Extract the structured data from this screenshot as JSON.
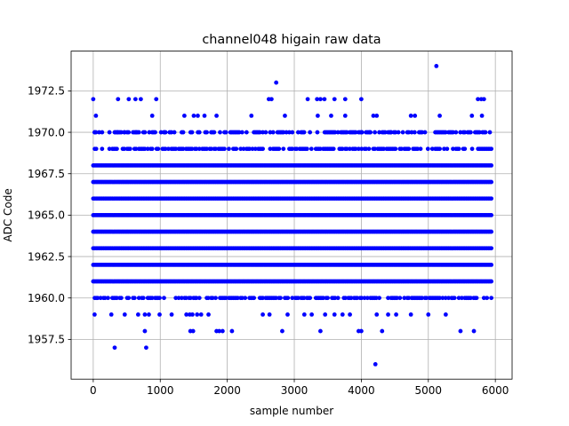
{
  "chart_data": {
    "type": "scatter",
    "title": "channel048 higain raw data",
    "xlabel": "sample number",
    "ylabel": "ADC Code",
    "xlim": [
      -330,
      6250
    ],
    "ylim": [
      1955.1,
      1974.9
    ],
    "xticks": [
      0,
      1000,
      2000,
      3000,
      4000,
      5000,
      6000
    ],
    "xtick_labels": [
      "0",
      "1000",
      "2000",
      "3000",
      "4000",
      "5000",
      "6000"
    ],
    "yticks": [
      1957.5,
      1960.0,
      1962.5,
      1965.0,
      1967.5,
      1970.0,
      1972.5
    ],
    "ytick_labels": [
      "1957.5",
      "1960.0",
      "1962.5",
      "1965.0",
      "1967.5",
      "1970.0",
      "1972.5"
    ],
    "grid": true,
    "marker_color": "#0000ff",
    "marker": "filled-circle",
    "x_range": [
      0,
      5940
    ],
    "band_density": [
      {
        "y": 1961,
        "density": 1.0
      },
      {
        "y": 1962,
        "density": 1.0
      },
      {
        "y": 1963,
        "density": 1.0
      },
      {
        "y": 1964,
        "density": 1.0
      },
      {
        "y": 1965,
        "density": 1.0
      },
      {
        "y": 1966,
        "density": 1.0
      },
      {
        "y": 1967,
        "density": 1.0
      },
      {
        "y": 1968,
        "density": 1.0
      },
      {
        "y": 1969,
        "density": 0.65
      },
      {
        "y": 1960,
        "density": 0.6
      },
      {
        "y": 1970,
        "density": 0.55
      }
    ],
    "sparse_points": [
      {
        "x": 320,
        "y": 1957
      },
      {
        "x": 790,
        "y": 1957
      },
      {
        "x": 4210,
        "y": 1956
      },
      {
        "x": 770,
        "y": 1958
      },
      {
        "x": 1450,
        "y": 1958
      },
      {
        "x": 1490,
        "y": 1958
      },
      {
        "x": 1840,
        "y": 1958
      },
      {
        "x": 1880,
        "y": 1958
      },
      {
        "x": 1930,
        "y": 1958
      },
      {
        "x": 2070,
        "y": 1958
      },
      {
        "x": 2820,
        "y": 1958
      },
      {
        "x": 3390,
        "y": 1958
      },
      {
        "x": 3960,
        "y": 1958
      },
      {
        "x": 4000,
        "y": 1958
      },
      {
        "x": 4310,
        "y": 1958
      },
      {
        "x": 5480,
        "y": 1958
      },
      {
        "x": 5680,
        "y": 1958
      },
      {
        "x": 20,
        "y": 1959
      },
      {
        "x": 270,
        "y": 1959
      },
      {
        "x": 470,
        "y": 1959
      },
      {
        "x": 670,
        "y": 1959
      },
      {
        "x": 770,
        "y": 1959
      },
      {
        "x": 830,
        "y": 1959
      },
      {
        "x": 990,
        "y": 1959
      },
      {
        "x": 1170,
        "y": 1959
      },
      {
        "x": 1390,
        "y": 1959
      },
      {
        "x": 1440,
        "y": 1959
      },
      {
        "x": 1480,
        "y": 1959
      },
      {
        "x": 1550,
        "y": 1959
      },
      {
        "x": 1610,
        "y": 1959
      },
      {
        "x": 1720,
        "y": 1959
      },
      {
        "x": 2530,
        "y": 1959
      },
      {
        "x": 2630,
        "y": 1959
      },
      {
        "x": 2900,
        "y": 1959
      },
      {
        "x": 3150,
        "y": 1959
      },
      {
        "x": 3260,
        "y": 1959
      },
      {
        "x": 3460,
        "y": 1959
      },
      {
        "x": 3600,
        "y": 1959
      },
      {
        "x": 3720,
        "y": 1959
      },
      {
        "x": 3830,
        "y": 1959
      },
      {
        "x": 4230,
        "y": 1959
      },
      {
        "x": 4400,
        "y": 1959
      },
      {
        "x": 4520,
        "y": 1959
      },
      {
        "x": 4740,
        "y": 1959
      },
      {
        "x": 5000,
        "y": 1959
      },
      {
        "x": 5260,
        "y": 1959
      },
      {
        "x": 20,
        "y": 1970
      },
      {
        "x": 40,
        "y": 1970
      },
      {
        "x": 320,
        "y": 1970
      },
      {
        "x": 360,
        "y": 1970
      },
      {
        "x": 470,
        "y": 1970
      },
      {
        "x": 640,
        "y": 1970
      },
      {
        "x": 1060,
        "y": 1970
      },
      {
        "x": 1140,
        "y": 1970
      },
      {
        "x": 4010,
        "y": 1970
      },
      {
        "x": 4130,
        "y": 1970
      },
      {
        "x": 4440,
        "y": 1970
      },
      {
        "x": 40,
        "y": 1971
      },
      {
        "x": 880,
        "y": 1971
      },
      {
        "x": 1360,
        "y": 1971
      },
      {
        "x": 1500,
        "y": 1971
      },
      {
        "x": 1560,
        "y": 1971
      },
      {
        "x": 1660,
        "y": 1971
      },
      {
        "x": 1840,
        "y": 1971
      },
      {
        "x": 2360,
        "y": 1971
      },
      {
        "x": 2860,
        "y": 1971
      },
      {
        "x": 3350,
        "y": 1971
      },
      {
        "x": 3550,
        "y": 1971
      },
      {
        "x": 3760,
        "y": 1971
      },
      {
        "x": 4180,
        "y": 1971
      },
      {
        "x": 4230,
        "y": 1971
      },
      {
        "x": 4740,
        "y": 1971
      },
      {
        "x": 4800,
        "y": 1971
      },
      {
        "x": 5170,
        "y": 1971
      },
      {
        "x": 5650,
        "y": 1971
      },
      {
        "x": 5800,
        "y": 1971
      },
      {
        "x": 0,
        "y": 1972
      },
      {
        "x": 370,
        "y": 1972
      },
      {
        "x": 530,
        "y": 1972
      },
      {
        "x": 630,
        "y": 1972
      },
      {
        "x": 710,
        "y": 1972
      },
      {
        "x": 940,
        "y": 1972
      },
      {
        "x": 2620,
        "y": 1972
      },
      {
        "x": 2660,
        "y": 1972
      },
      {
        "x": 3200,
        "y": 1972
      },
      {
        "x": 3340,
        "y": 1972
      },
      {
        "x": 3390,
        "y": 1972
      },
      {
        "x": 3450,
        "y": 1972
      },
      {
        "x": 3600,
        "y": 1972
      },
      {
        "x": 3760,
        "y": 1972
      },
      {
        "x": 4000,
        "y": 1972
      },
      {
        "x": 5740,
        "y": 1972
      },
      {
        "x": 5790,
        "y": 1972
      },
      {
        "x": 5830,
        "y": 1972
      },
      {
        "x": 2730,
        "y": 1973
      },
      {
        "x": 5120,
        "y": 1974
      }
    ]
  }
}
